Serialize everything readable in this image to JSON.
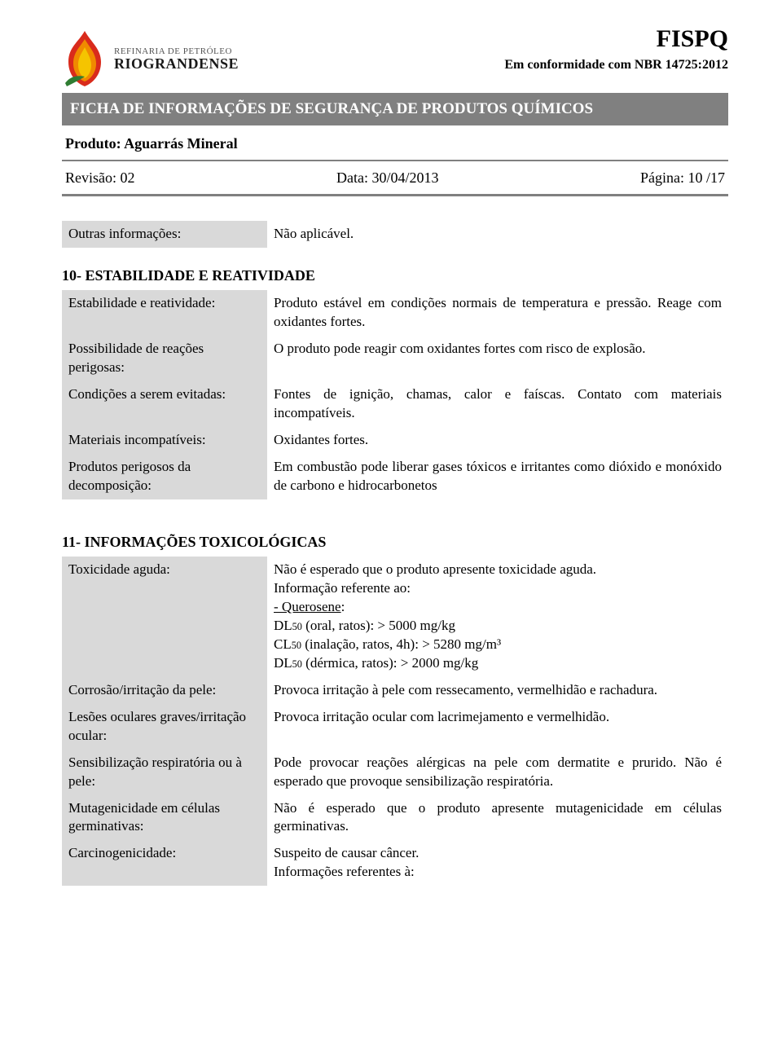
{
  "header": {
    "brand_line1": "REFINARIA DE PETRÓLEO",
    "brand_line2": "RIOGRANDENSE",
    "acronym": "FISPQ",
    "conformity": "Em conformidade com NBR 14725:2012",
    "title_bar": "FICHA DE INFORMAÇÕES DE SEGURANÇA DE PRODUTOS QUÍMICOS",
    "product": "Produto: Aguarrás Mineral",
    "revision": "Revisão: 02",
    "date": "Data: 30/04/2013",
    "page": "Página: 10 /17"
  },
  "section9_tail": {
    "k": "Outras informações:",
    "v": "Não aplicável."
  },
  "section10": {
    "title": "10- ESTABILIDADE E REATIVIDADE",
    "rows": [
      {
        "k": "Estabilidade e reatividade:",
        "v": "Produto estável em condições normais de temperatura e pressão. Reage com oxidantes fortes."
      },
      {
        "k": "Possibilidade de reações perigosas:",
        "v": "O produto pode reagir com oxidantes fortes com risco de explosão."
      },
      {
        "k": "Condições a serem evitadas:",
        "v": "Fontes de ignição, chamas, calor e faíscas. Contato com materiais incompatíveis."
      },
      {
        "k": "Materiais incompatíveis:",
        "v": "Oxidantes fortes."
      },
      {
        "k": "Produtos perigosos da decomposição:",
        "v": "Em combustão pode liberar gases tóxicos e irritantes como dióxido e monóxido de carbono e hidrocarbonetos"
      }
    ]
  },
  "section11": {
    "title": "11- INFORMAÇÕES TOXICOLÓGICAS",
    "rows": [
      {
        "k": "Toxicidade aguda:",
        "lines": [
          "Não é esperado que o produto apresente toxicidade aguda.",
          "Informação referente ao:",
          "- Querosene:",
          "DL50 (oral, ratos): > 5000 mg/kg",
          "CL50 (inalação, ratos, 4h): > 5280 mg/m³",
          "DL50 (dérmica, ratos): > 2000 mg/kg"
        ],
        "underline_idx": 2
      },
      {
        "k": "Corrosão/irritação da pele:",
        "v": "Provoca irritação à pele com ressecamento, vermelhidão e rachadura."
      },
      {
        "k": "Lesões oculares graves/irritação ocular:",
        "v": "Provoca irritação ocular com lacrimejamento e vermelhidão."
      },
      {
        "k": "Sensibilização respiratória ou à pele:",
        "v": "Pode provocar reações alérgicas na pele com dermatite e prurido. Não é esperado que provoque sensibilização respiratória."
      },
      {
        "k": "Mutagenicidade em células germinativas:",
        "v": "Não é esperado que o produto apresente mutagenicidade em células germinativas."
      },
      {
        "k": "Carcinogenicidade:",
        "lines": [
          "Suspeito de causar câncer.",
          "Informações referentes à:"
        ]
      }
    ]
  },
  "colors": {
    "gray_bar": "#808080",
    "cell_gray": "#d9d9d9",
    "text": "#000000",
    "bg": "#ffffff",
    "flame_outer": "#d92b1c",
    "flame_mid": "#f08a00",
    "flame_inner": "#f5c400",
    "leaf": "#2f7d32"
  }
}
